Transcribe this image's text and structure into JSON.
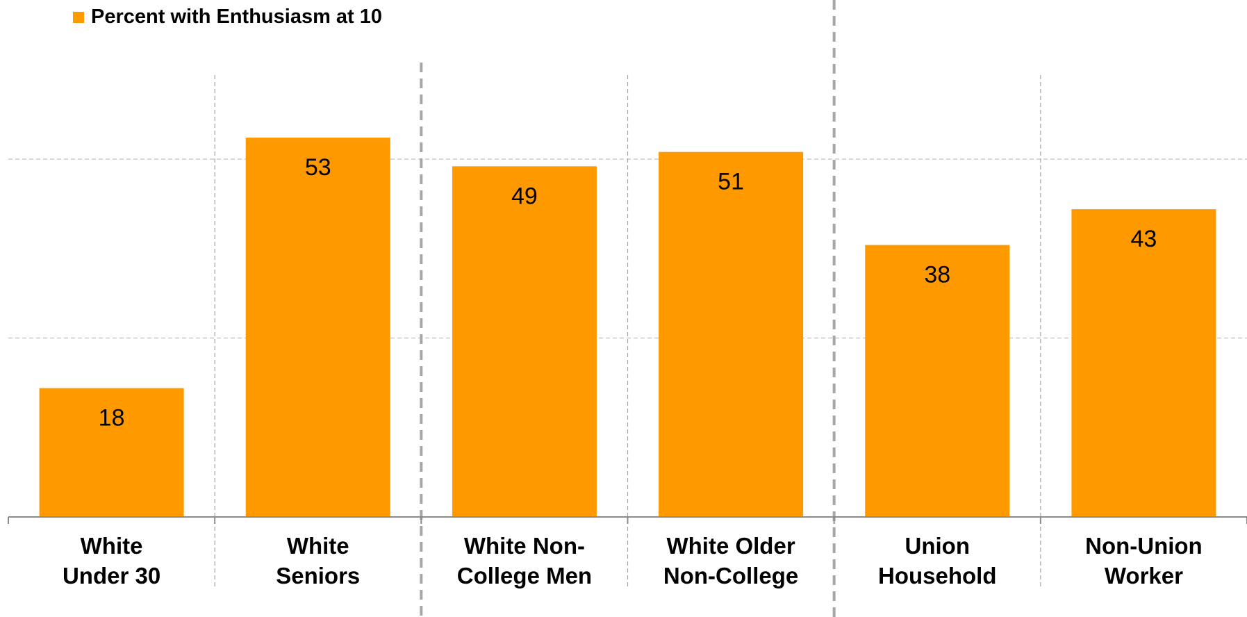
{
  "chart_data": {
    "type": "bar",
    "legend": [
      {
        "label": "Percent with Enthusiasm at 10",
        "color": "#FF9900"
      }
    ],
    "categories": [
      [
        "White",
        "Under 30"
      ],
      [
        "White",
        "Seniors"
      ],
      [
        "White Non-",
        "College Men"
      ],
      [
        "White Older",
        "Non-College"
      ],
      [
        "Union",
        "Household"
      ],
      [
        "Non-Union",
        "Worker"
      ]
    ],
    "series": [
      {
        "name": "Percent with Enthusiasm at 10",
        "values": [
          18,
          53,
          49,
          51,
          38,
          43
        ],
        "color": "#FF9900"
      }
    ],
    "ylim": [
      0,
      60
    ],
    "grid": true,
    "legend_position": "top-left",
    "group_separators_after": [
      2,
      4
    ]
  }
}
